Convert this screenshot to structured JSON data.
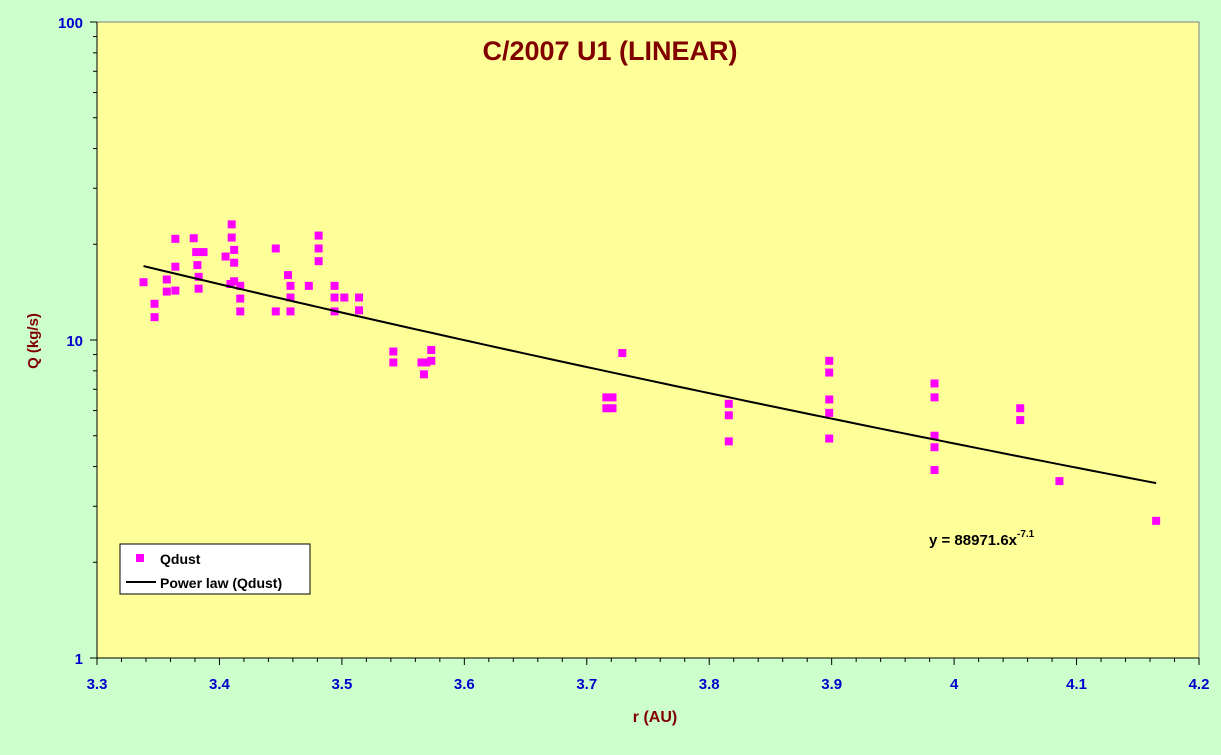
{
  "colors": {
    "page_background": "#CCFFCC",
    "plot_background": "#FFFF99",
    "title": "#800000",
    "axis_labels": "#800000",
    "tick_labels": "#0000CC",
    "marker": "#FF00FF",
    "trend_line": "#000000"
  },
  "chart_data": {
    "type": "scatter",
    "title": "C/2007 U1 (LINEAR)",
    "xlabel": "r (AU)",
    "ylabel": "Q (kg/s)",
    "xlim": [
      3.3,
      4.2
    ],
    "ylim": [
      1,
      100
    ],
    "y_scale": "log",
    "grid": false,
    "legend_position": "bottom-left",
    "x_ticks": [
      "3.3",
      "3.4",
      "3.5",
      "3.6",
      "3.7",
      "3.8",
      "3.9",
      "4",
      "4.1",
      "4.2"
    ],
    "y_ticks": [
      "1",
      "10",
      "100"
    ],
    "series": [
      {
        "name": "Qdust",
        "marker": "square",
        "color": "#FF00FF",
        "points": [
          [
            3.338,
            15.2
          ],
          [
            3.347,
            13.0
          ],
          [
            3.347,
            11.8
          ],
          [
            3.357,
            15.5
          ],
          [
            3.357,
            14.2
          ],
          [
            3.364,
            20.8
          ],
          [
            3.364,
            17.0
          ],
          [
            3.364,
            14.3
          ],
          [
            3.379,
            20.9
          ],
          [
            3.381,
            18.9
          ],
          [
            3.382,
            17.2
          ],
          [
            3.383,
            15.8
          ],
          [
            3.383,
            14.5
          ],
          [
            3.387,
            18.9
          ],
          [
            3.405,
            18.3
          ],
          [
            3.409,
            15.0
          ],
          [
            3.41,
            23.1
          ],
          [
            3.41,
            21.0
          ],
          [
            3.412,
            19.2
          ],
          [
            3.412,
            17.5
          ],
          [
            3.412,
            15.3
          ],
          [
            3.417,
            14.8
          ],
          [
            3.417,
            13.5
          ],
          [
            3.417,
            12.3
          ],
          [
            3.446,
            19.4
          ],
          [
            3.446,
            12.3
          ],
          [
            3.456,
            16.0
          ],
          [
            3.458,
            14.8
          ],
          [
            3.458,
            13.6
          ],
          [
            3.458,
            12.3
          ],
          [
            3.473,
            14.8
          ],
          [
            3.481,
            21.3
          ],
          [
            3.481,
            19.4
          ],
          [
            3.481,
            17.7
          ],
          [
            3.494,
            14.8
          ],
          [
            3.494,
            13.6
          ],
          [
            3.494,
            12.3
          ],
          [
            3.502,
            13.6
          ],
          [
            3.514,
            13.6
          ],
          [
            3.514,
            12.4
          ],
          [
            3.542,
            9.2
          ],
          [
            3.542,
            8.5
          ],
          [
            3.565,
            8.5
          ],
          [
            3.567,
            7.8
          ],
          [
            3.569,
            8.5
          ],
          [
            3.573,
            9.3
          ],
          [
            3.573,
            8.6
          ],
          [
            3.716,
            6.6
          ],
          [
            3.716,
            6.1
          ],
          [
            3.721,
            6.6
          ],
          [
            3.721,
            6.1
          ],
          [
            3.729,
            9.1
          ],
          [
            3.816,
            6.3
          ],
          [
            3.816,
            5.8
          ],
          [
            3.816,
            4.8
          ],
          [
            3.898,
            8.6
          ],
          [
            3.898,
            7.9
          ],
          [
            3.898,
            6.5
          ],
          [
            3.898,
            5.9
          ],
          [
            3.898,
            4.9
          ],
          [
            3.984,
            7.3
          ],
          [
            3.984,
            6.6
          ],
          [
            3.984,
            5.0
          ],
          [
            3.984,
            4.6
          ],
          [
            3.984,
            3.9
          ],
          [
            4.054,
            6.1
          ],
          [
            4.054,
            5.6
          ],
          [
            4.086,
            3.6
          ],
          [
            4.165,
            2.7
          ]
        ]
      },
      {
        "name": "Power law (Qdust)",
        "type": "line",
        "color": "#000000",
        "equation": "y = 88971.6x",
        "exponent_label": "-7.1",
        "coefficient": 88971.6,
        "exponent": -7.1,
        "x_range": [
          3.338,
          4.165
        ]
      }
    ]
  }
}
